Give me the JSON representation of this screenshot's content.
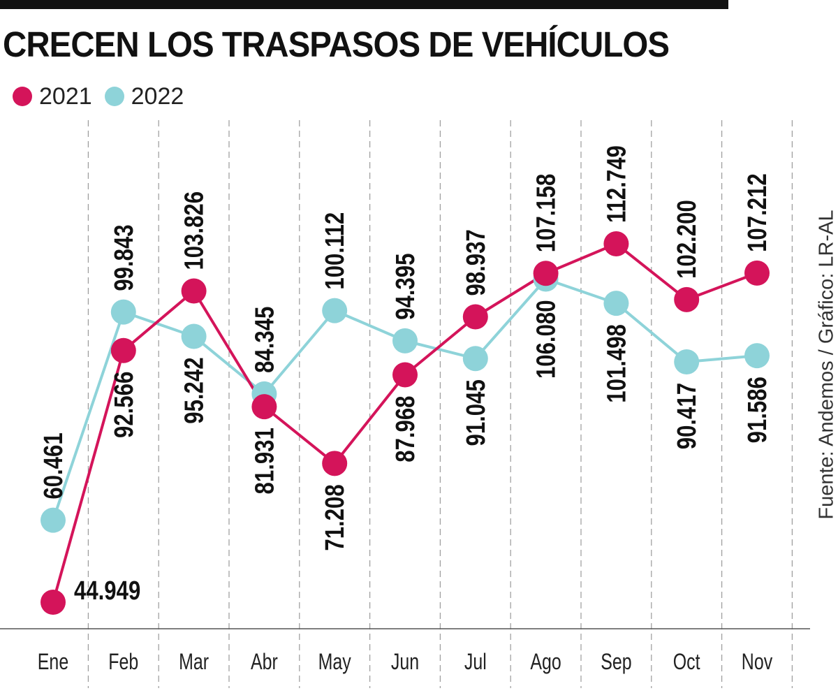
{
  "title": "CRECEN LOS TRASPASOS DE VEHÍCULOS",
  "source": "Fuente: Andemos / Gráfico: LR-AL",
  "legend": [
    {
      "label": "2021",
      "color": "#d4145a"
    },
    {
      "label": "2022",
      "color": "#8ed3d9"
    }
  ],
  "chart_data": {
    "type": "line",
    "title": "CRECEN LOS TRASPASOS DE VEHÍCULOS",
    "xlabel": "",
    "ylabel": "",
    "categories": [
      "Ene",
      "Feb",
      "Mar",
      "Abr",
      "May",
      "Jun",
      "Jul",
      "Ago",
      "Sep",
      "Oct",
      "Nov"
    ],
    "series": [
      {
        "name": "2021",
        "color": "#d4145a",
        "values": [
          44949,
          92566,
          103826,
          81931,
          71208,
          87968,
          98937,
          107158,
          112749,
          102200,
          107212
        ],
        "labels": [
          "44.949",
          "92.566",
          "103.826",
          "81.931",
          "71.208",
          "87.968",
          "98.937",
          "107.158",
          "112.749",
          "102.200",
          "107.212"
        ]
      },
      {
        "name": "2022",
        "color": "#8ed3d9",
        "values": [
          60461,
          99843,
          95242,
          84345,
          100112,
          94395,
          91045,
          106080,
          101498,
          90417,
          91586
        ],
        "labels": [
          "60.461",
          "99.843",
          "95.242",
          "84.345",
          "100.112",
          "94.395",
          "91.045",
          "106.080",
          "101.498",
          "90.417",
          "91.586"
        ]
      }
    ],
    "ylim": [
      30000,
      120000
    ],
    "grid": "vertical dashed",
    "legend_position": "top-left"
  }
}
